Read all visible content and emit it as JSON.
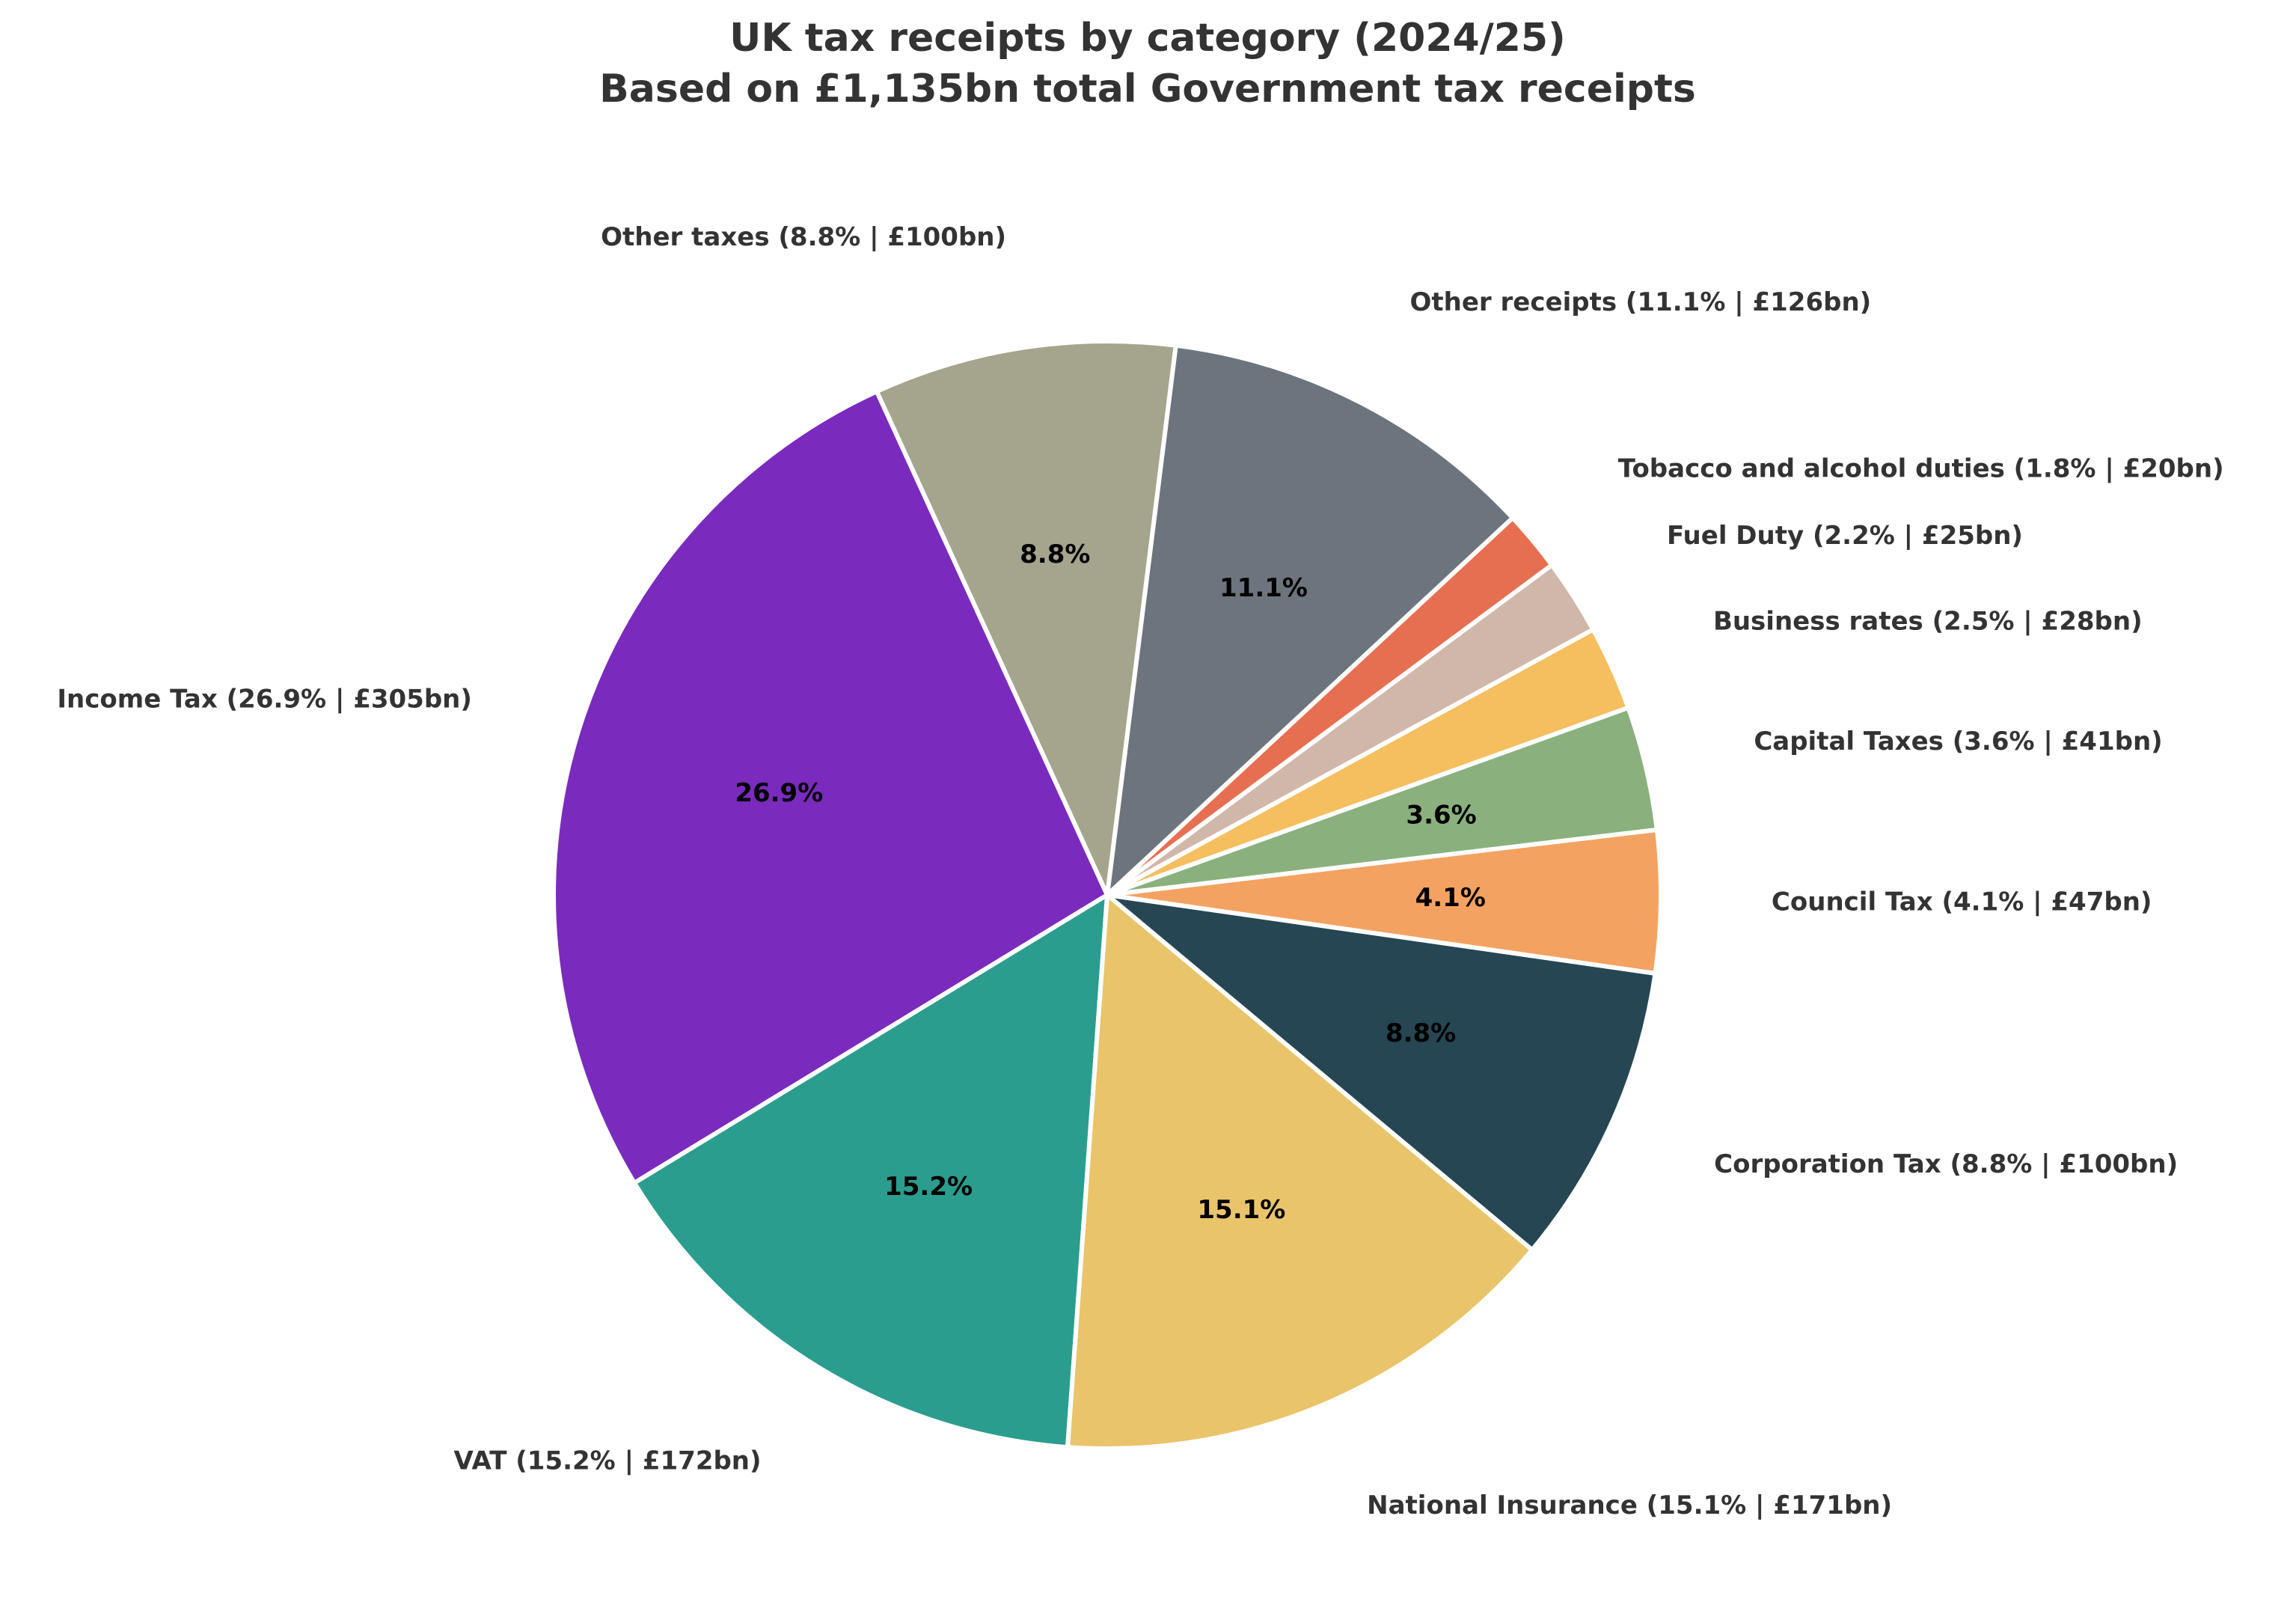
{
  "chart_data": {
    "type": "pie",
    "title": "UK tax receipts by category (2024/25)",
    "subtitle": "Based on £1,135bn total Government tax receipts",
    "unit": "£bn",
    "start_angle_deg": 114.6,
    "direction": "counterclockwise",
    "slices": [
      {
        "name": "Income Tax",
        "value": 305,
        "pct": "26.9%",
        "label": "Income Tax (26.9% | £305bn)",
        "color": "#7a2bbd"
      },
      {
        "name": "VAT",
        "value": 172,
        "pct": "15.2%",
        "label": "VAT (15.2% | £172bn)",
        "color": "#2a9d8f"
      },
      {
        "name": "National Insurance",
        "value": 171,
        "pct": "15.1%",
        "label": "National Insurance (15.1% | £171bn)",
        "color": "#e9c46a"
      },
      {
        "name": "Corporation Tax",
        "value": 100,
        "pct": "8.8%",
        "label": "Corporation Tax (8.8% | £100bn)",
        "color": "#264653"
      },
      {
        "name": "Council Tax",
        "value": 47,
        "pct": "4.1%",
        "label": "Council Tax (4.1% | £47bn)",
        "color": "#f4a261"
      },
      {
        "name": "Capital Taxes",
        "value": 41,
        "pct": "3.6%",
        "label": "Capital Taxes (3.6% | £41bn)",
        "color": "#8ab17d"
      },
      {
        "name": "Business rates",
        "value": 28,
        "pct": "",
        "label": "Business rates (2.5% | £28bn)",
        "color": "#f5be5f"
      },
      {
        "name": "Fuel Duty",
        "value": 25,
        "pct": "",
        "label": "Fuel Duty (2.2% | £25bn)",
        "color": "#d1b7aa"
      },
      {
        "name": "Tobacco and alcohol duties",
        "value": 20,
        "pct": "",
        "label": "Tobacco and alcohol duties (1.8% | £20bn)",
        "color": "#e76f51"
      },
      {
        "name": "Other receipts",
        "value": 126,
        "pct": "11.1%",
        "label": "Other receipts (11.1% | £126bn)",
        "color": "#6c757d"
      },
      {
        "name": "Other taxes",
        "value": 100,
        "pct": "8.8%",
        "label": "Other taxes (8.8% | £100bn)",
        "color": "#a5a58d"
      }
    ]
  }
}
